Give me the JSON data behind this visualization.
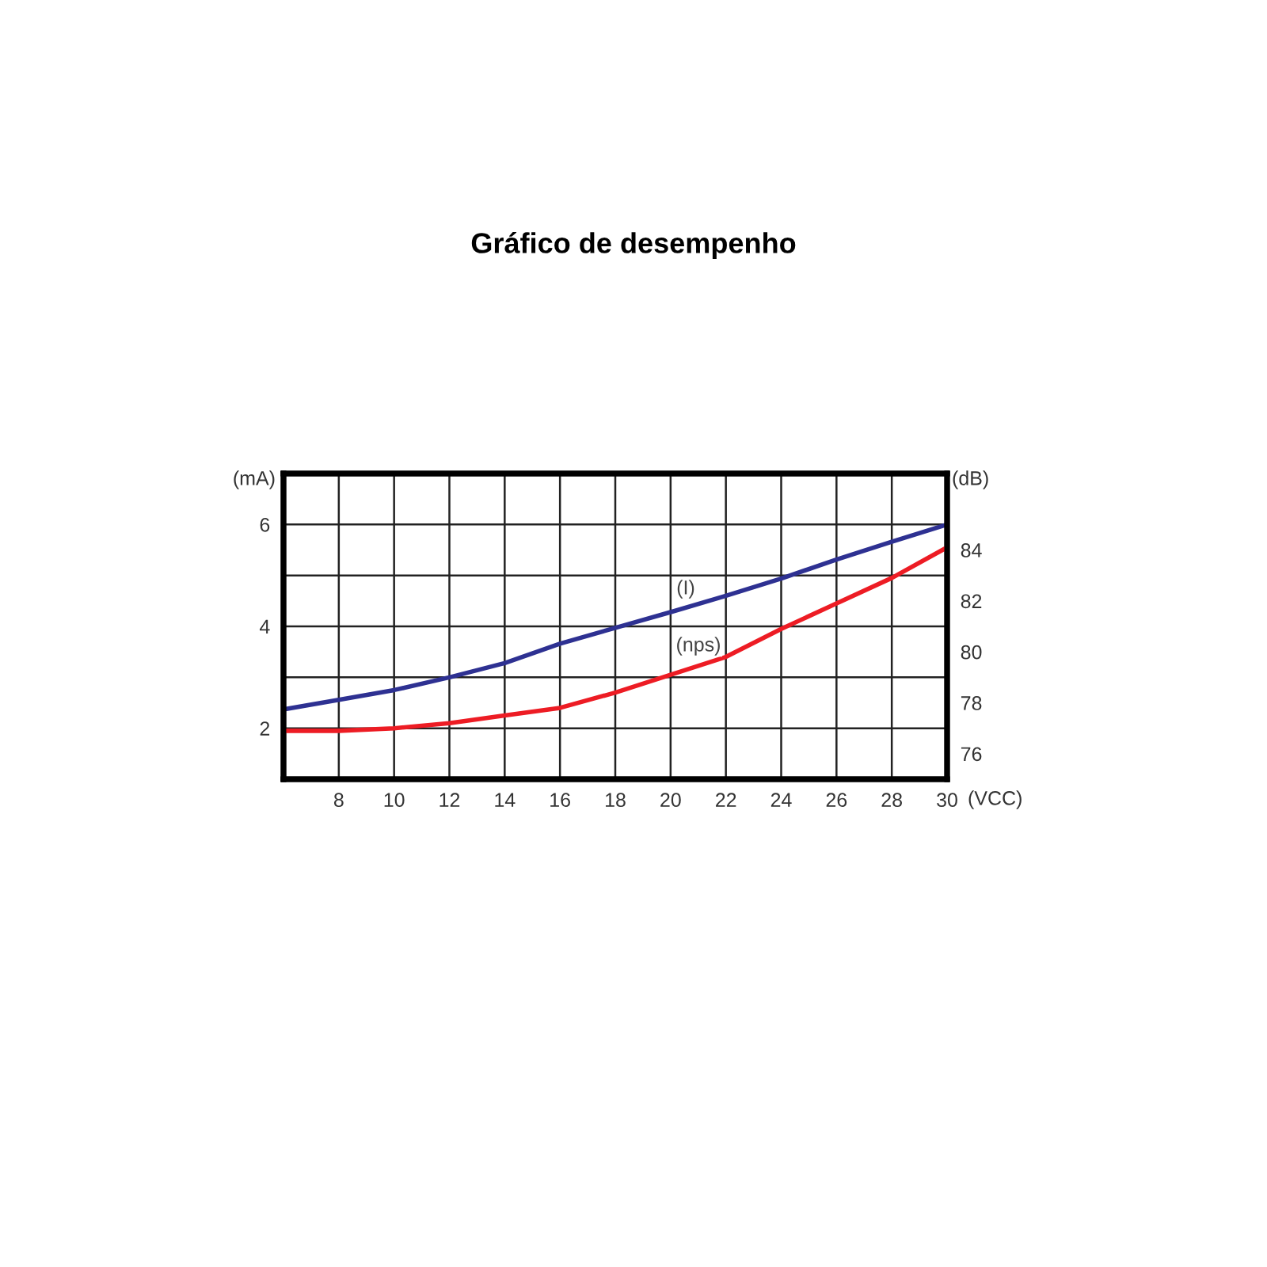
{
  "chart_data": {
    "type": "line",
    "title": "Gráfico de desempenho",
    "xlabel": "(VCC)",
    "ylabel": "(mA)",
    "y2label": "(dB)",
    "x": [
      6,
      8,
      10,
      12,
      14,
      16,
      18,
      20,
      22,
      24,
      26,
      28,
      30
    ],
    "series": [
      {
        "color": "#2e3192",
        "values": [
          2.37,
          2.56,
          2.75,
          3.0,
          3.28,
          3.66,
          3.97,
          4.28,
          4.6,
          4.94,
          5.31,
          5.66,
          6.0
        ]
      },
      {
        "color": "#ed1c24",
        "axis": "y2",
        "values": [
          76.9,
          76.9,
          77.0,
          77.2,
          77.5,
          77.8,
          78.4,
          79.1,
          79.8,
          80.9,
          81.9,
          82.9,
          84.1
        ]
      }
    ],
    "annotations": [
      "(I)",
      "(nps)"
    ],
    "xlim": [
      6,
      30
    ],
    "xticks": [
      8,
      10,
      12,
      14,
      16,
      18,
      20,
      22,
      24,
      26,
      28,
      30
    ],
    "ylim": [
      1,
      7
    ],
    "yticks": [
      {
        "value": 1,
        "label": null
      },
      2,
      {
        "value": 3,
        "label": null
      },
      4,
      {
        "value": 5,
        "label": null
      },
      6
    ],
    "y2lim": [
      75,
      87
    ],
    "y2ticks": [
      76,
      78,
      80,
      82,
      84
    ],
    "grid": true,
    "legend": false
  }
}
